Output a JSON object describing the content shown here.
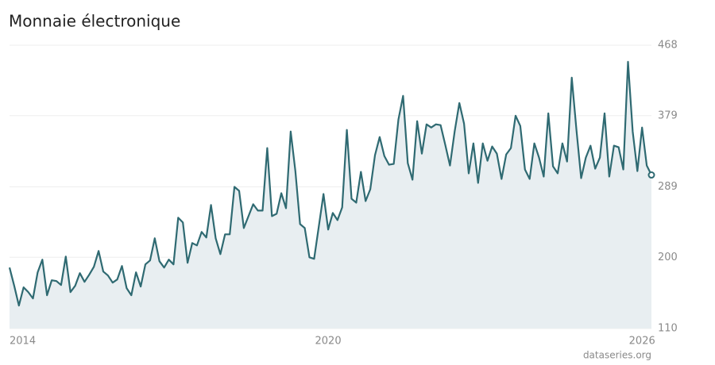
{
  "chart_data": {
    "type": "line",
    "title": "Monnaie électronique",
    "source": "dataseries.org",
    "categories": [
      "2014",
      null,
      null,
      null,
      null,
      null,
      null,
      null,
      null,
      null,
      null,
      null,
      null,
      null,
      null,
      null,
      null,
      null,
      null,
      null,
      null,
      null,
      null,
      null,
      null,
      null,
      null,
      null,
      null,
      null,
      null,
      null,
      null,
      null,
      null,
      null,
      null,
      null,
      null,
      null,
      null,
      null,
      null,
      null,
      null,
      null,
      null,
      null,
      null,
      null,
      null,
      null,
      null,
      null,
      null,
      null,
      null,
      null,
      null,
      null,
      null,
      null,
      null,
      null,
      null,
      null,
      null,
      null,
      "2020",
      null,
      null,
      null,
      null,
      null,
      null,
      null,
      null,
      null,
      null,
      null,
      null,
      null,
      null,
      null,
      null,
      null,
      null,
      null,
      null,
      null,
      null,
      null,
      null,
      null,
      null,
      null,
      null,
      null,
      null,
      null,
      null,
      null,
      null,
      null,
      null,
      null,
      null,
      null,
      null,
      null,
      null,
      null,
      null,
      null,
      null,
      null,
      null,
      null,
      null,
      null,
      null,
      null,
      null,
      null,
      null,
      null,
      null,
      null,
      null,
      null,
      null,
      null,
      null,
      null,
      null,
      "2026",
      null,
      null
    ],
    "series": [
      {
        "name": "Monnaie électronique",
        "color": "#2f6a72",
        "fill": "#e8eef1",
        "values": [
          187,
          164,
          139,
          162,
          156,
          148,
          181,
          197,
          152,
          171,
          170,
          165,
          201,
          156,
          164,
          180,
          169,
          178,
          188,
          208,
          182,
          177,
          168,
          172,
          189,
          161,
          152,
          181,
          163,
          191,
          196,
          224,
          195,
          187,
          197,
          191,
          250,
          244,
          193,
          218,
          215,
          232,
          225,
          266,
          224,
          204,
          229,
          229,
          289,
          284,
          237,
          252,
          267,
          259,
          259,
          338,
          252,
          255,
          281,
          262,
          359,
          309,
          242,
          237,
          200,
          198,
          239,
          280,
          235,
          256,
          247,
          263,
          361,
          274,
          269,
          308,
          271,
          286,
          329,
          352,
          328,
          317,
          318,
          374,
          404,
          319,
          298,
          372,
          331,
          368,
          364,
          368,
          367,
          342,
          316,
          359,
          395,
          369,
          306,
          344,
          294,
          344,
          322,
          340,
          331,
          299,
          330,
          338,
          379,
          366,
          311,
          299,
          344,
          326,
          302,
          382,
          315,
          306,
          344,
          321,
          427,
          361,
          300,
          326,
          341,
          312,
          326,
          382,
          302,
          341,
          339,
          311,
          447,
          359,
          309,
          364,
          316,
          304
        ]
      }
    ],
    "ylim": [
      110,
      468
    ],
    "yticks": [
      110,
      200,
      289,
      379,
      468
    ],
    "grid": true
  }
}
